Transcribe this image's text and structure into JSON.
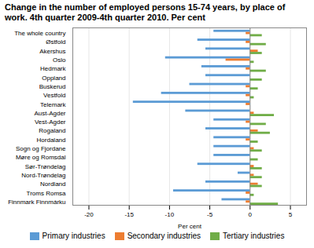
{
  "chart_data": {
    "type": "bar",
    "orientation": "horizontal",
    "title": "Change in the number of employed persons 15-74 years, by place of\nwork. 4th quarter 2009-4th quarter 2010. Per cent",
    "xlabel": "Per cent",
    "categories": [
      "The whole country",
      "Østfold",
      "Akershus",
      "Oslo",
      "Hedmark",
      "Oppland",
      "Buskerud",
      "Vestfold",
      "Telemark",
      "Aust-Agder",
      "Vest-Agder",
      "Rogaland",
      "Hordaland",
      "Sogn og Fjordane",
      "Møre og Romsdal",
      "Sør-Trøndelag",
      "Nord-Trøndelag",
      "Nordland",
      "Troms Romsa",
      "Finnmark Finnmárku"
    ],
    "series": [
      {
        "name": "Primary industries",
        "color": "#5b9bd5",
        "values": [
          -4.5,
          -6.5,
          -5.5,
          -10.5,
          -6.0,
          -5.5,
          -7.5,
          -11.0,
          -14.5,
          -8.0,
          -4.5,
          -5.5,
          -4.5,
          -4.5,
          -4.5,
          -6.5,
          -1.5,
          -5.5,
          -9.5,
          -3.5
        ]
      },
      {
        "name": "Secondary industries",
        "color": "#ed7d31",
        "values": [
          -0.5,
          -0.5,
          1.0,
          -3.0,
          -0.5,
          0.0,
          -0.5,
          -0.5,
          -0.5,
          0.5,
          -0.5,
          1.0,
          -0.5,
          0.5,
          0.0,
          0.5,
          0.5,
          1.0,
          -0.5,
          -0.5
        ]
      },
      {
        "name": "Tertiary industries",
        "color": "#70ad47",
        "values": [
          1.5,
          2.0,
          1.5,
          0.5,
          2.0,
          1.5,
          1.0,
          0.5,
          0.0,
          3.0,
          2.0,
          2.5,
          1.0,
          1.5,
          1.0,
          1.5,
          1.5,
          1.5,
          0.5,
          3.5
        ]
      }
    ],
    "xlim": [
      -22,
      7
    ],
    "xticks": [
      -20,
      -15,
      -10,
      -5,
      0,
      5
    ],
    "grid": true,
    "legend": "bottom"
  }
}
